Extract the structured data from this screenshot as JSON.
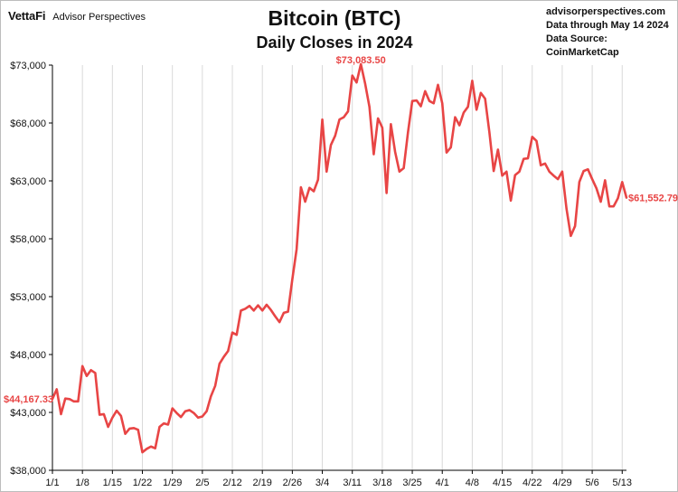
{
  "brand": {
    "logo_text": "VettaFi",
    "name": "Advisor Perspectives"
  },
  "source": {
    "site": "advisorperspectives.com",
    "data_through": "Data through May 14 2024",
    "data_source": "Data Source: CoinMarketCap"
  },
  "colors": {
    "line": "#e84545",
    "grid": "#d9d9d9",
    "axis": "#000000"
  },
  "chart_data": {
    "type": "line",
    "title": "Bitcoin (BTC)",
    "subtitle": "Daily Closes in 2024",
    "ylim": [
      38000,
      73000
    ],
    "y_ticks": [
      38000,
      43000,
      48000,
      53000,
      58000,
      63000,
      68000,
      73000
    ],
    "y_tick_labels": [
      "$38,000",
      "$43,000",
      "$48,000",
      "$53,000",
      "$58,000",
      "$63,000",
      "$68,000",
      "$73,000"
    ],
    "x_ticks": [
      "1/1",
      "1/8",
      "1/15",
      "1/22",
      "1/29",
      "2/5",
      "2/12",
      "2/19",
      "2/26",
      "3/4",
      "3/11",
      "3/18",
      "3/25",
      "4/1",
      "4/8",
      "4/15",
      "4/22",
      "4/29",
      "5/6",
      "5/13"
    ],
    "grid": "vertical",
    "series": [
      {
        "x": [
          "1/1",
          "1/2",
          "1/3",
          "1/4",
          "1/5",
          "1/6",
          "1/7",
          "1/8",
          "1/9",
          "1/10",
          "1/11",
          "1/12",
          "1/13",
          "1/14",
          "1/15",
          "1/16",
          "1/17",
          "1/18",
          "1/19",
          "1/20",
          "1/21",
          "1/22",
          "1/23",
          "1/24",
          "1/25",
          "1/26",
          "1/27",
          "1/28",
          "1/29",
          "1/30",
          "1/31",
          "2/1",
          "2/2",
          "2/3",
          "2/4",
          "2/5",
          "2/6",
          "2/7",
          "2/8",
          "2/9",
          "2/10",
          "2/11",
          "2/12",
          "2/13",
          "2/14",
          "2/15",
          "2/16",
          "2/17",
          "2/18",
          "2/19",
          "2/20",
          "2/21",
          "2/22",
          "2/23",
          "2/24",
          "2/25",
          "2/26",
          "2/27",
          "2/28",
          "2/29",
          "3/1",
          "3/2",
          "3/3",
          "3/4",
          "3/5",
          "3/6",
          "3/7",
          "3/8",
          "3/9",
          "3/10",
          "3/11",
          "3/12",
          "3/13",
          "3/14",
          "3/15",
          "3/16",
          "3/17",
          "3/18",
          "3/19",
          "3/20",
          "3/21",
          "3/22",
          "3/23",
          "3/24",
          "3/25",
          "3/26",
          "3/27",
          "3/28",
          "3/29",
          "3/30",
          "3/31",
          "4/1",
          "4/2",
          "4/3",
          "4/4",
          "4/5",
          "4/6",
          "4/7",
          "4/8",
          "4/9",
          "4/10",
          "4/11",
          "4/12",
          "4/13",
          "4/14",
          "4/15",
          "4/16",
          "4/17",
          "4/18",
          "4/19",
          "4/20",
          "4/21",
          "4/22",
          "4/23",
          "4/24",
          "4/25",
          "4/26",
          "4/27",
          "4/28",
          "4/29",
          "4/30",
          "5/1",
          "5/2",
          "5/3",
          "5/4",
          "5/5",
          "5/6",
          "5/7",
          "5/8",
          "5/9",
          "5/10",
          "5/11",
          "5/12",
          "5/13",
          "5/14"
        ],
        "values": [
          44167.33,
          45000,
          42850,
          44200,
          44150,
          43950,
          43950,
          47000,
          46150,
          46650,
          46400,
          42800,
          42850,
          41750,
          42550,
          43150,
          42700,
          41150,
          41600,
          41650,
          41500,
          39550,
          39850,
          40050,
          39900,
          41750,
          42050,
          41950,
          43350,
          42950,
          42600,
          43100,
          43200,
          42950,
          42550,
          42650,
          43100,
          44400,
          45300,
          47200,
          47800,
          48300,
          49900,
          49700,
          51800,
          51950,
          52200,
          51800,
          52250,
          51800,
          52300,
          51850,
          51300,
          50800,
          51600,
          51700,
          54500,
          57100,
          62450,
          61200,
          62400,
          62100,
          63100,
          68300,
          63800,
          66100,
          66900,
          68300,
          68500,
          69000,
          72100,
          71500,
          73083.5,
          71400,
          69400,
          65300,
          68400,
          67600,
          61950,
          67900,
          65500,
          63800,
          64100,
          67200,
          69900,
          69950,
          69450,
          70750,
          69900,
          69700,
          71300,
          69700,
          65450,
          65900,
          68500,
          67800,
          68900,
          69400,
          71650,
          69150,
          70600,
          70100,
          67200,
          63850,
          65700,
          63450,
          63800,
          61300,
          63500,
          63800,
          64900,
          64950,
          66800,
          66450,
          64350,
          64500,
          63800,
          63450,
          63150,
          63800,
          60600,
          58250,
          59100,
          62900,
          63850,
          64000,
          63150,
          62350,
          61200,
          63050,
          60800,
          60800,
          61500,
          62900,
          61552.79
        ]
      }
    ],
    "annotations": {
      "start_label": "$44,167.33",
      "peak_label": "$73,083.50",
      "end_label": "$61,552.79"
    }
  }
}
